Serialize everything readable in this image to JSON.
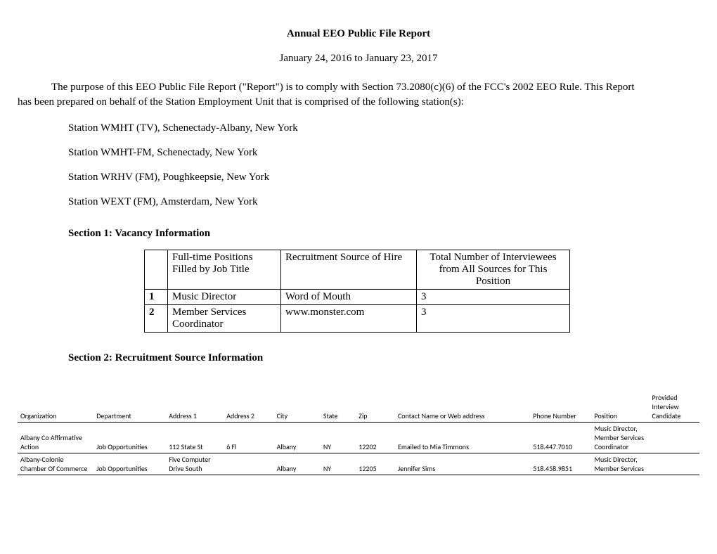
{
  "title": "Annual EEO Public File Report",
  "date_range": "January 24, 2016 to January 23, 2017",
  "intro_part1": "The purpose of this EEO Public File Report (\"Report\") is to comply with Section 73.2080(c)(6) of the FCC's 2002 EEO Rule.  This Report",
  "intro_part2": "has been prepared on behalf of the Station Employment Unit that is comprised of the following station(s):",
  "stations": [
    "Station WMHT (TV), Schenectady-Albany, New York",
    "Station WMHT-FM, Schenectady, New York",
    "Station WRHV (FM), Poughkeepsie, New York",
    "Station WEXT (FM), Amsterdam, New York"
  ],
  "section1_header": "Section 1:  Vacancy Information",
  "table1": {
    "headers": {
      "num": "",
      "pos": "Full-time Positions Filled by Job Title",
      "src": "Recruitment Source of Hire",
      "tot": "Total Number of Interviewees from All Sources for This Position"
    },
    "rows": [
      {
        "num": "1",
        "pos": "Music Director",
        "src": "Word of Mouth",
        "tot": "3"
      },
      {
        "num": "2",
        "pos": "Member Services Coordinator",
        "src": "www.monster.com",
        "tot": "3"
      }
    ]
  },
  "section2_header": "Section 2:  Recruitment Source Information",
  "table2": {
    "headers": {
      "org": "Organization",
      "dept": "Department",
      "a1": "Address 1",
      "a2": "Address 2",
      "city": "City",
      "state": "State",
      "zip": "Zip",
      "contact": "Contact Name or Web address",
      "phone": "Phone Number",
      "pos": "Position",
      "cand": "Provided Interview Candidate"
    },
    "rows": [
      {
        "org": "Albany Co Affirmative Action",
        "dept": "Job Opportunities",
        "a1": "112 State St",
        "a2": "6 Fl",
        "city": "Albany",
        "state": "NY",
        "zip": "12202",
        "contact": "Emailed to Mia Timmons",
        "phone": "518.447.7010",
        "pos": "Music Director, Member Services Coordinator",
        "cand": ""
      },
      {
        "org": "Albany-Colonie Chamber Of Commerce",
        "dept": "Job Opportunities",
        "a1": "Five Computer Drive South",
        "a2": "",
        "city": "Albany",
        "state": "NY",
        "zip": "12205",
        "contact": "Jennifer Sims",
        "phone": "518.458.9851",
        "pos": "Music Director, Member Services",
        "cand": ""
      }
    ]
  }
}
